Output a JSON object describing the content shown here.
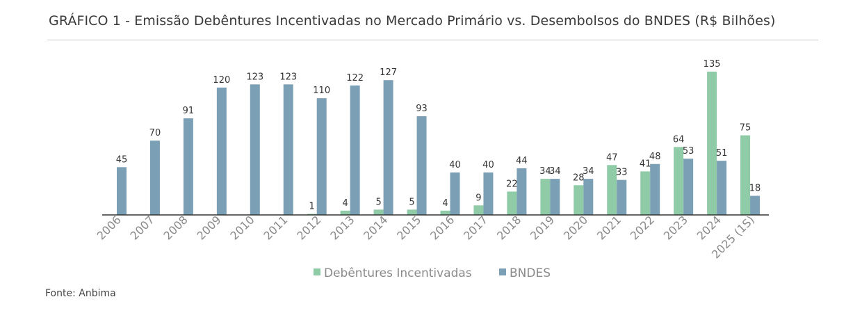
{
  "title": "GRÁFICO 1 - Emissão Debêntures Incentivadas no Mercado Primário vs. Desembolsos do BNDES (R$ Bilhões)",
  "source": "Fonte: Anbima",
  "colors": {
    "debentures": "#8ECBA6",
    "bndes": "#7B9FB5"
  },
  "chart_data": {
    "type": "bar",
    "title": "GRÁFICO 1 - Emissão Debêntures Incentivadas no Mercado Primário vs. Desembolsos do BNDES (R$ Bilhões)",
    "xlabel": "",
    "ylabel": "",
    "ylim": [
      0,
      140
    ],
    "grid": false,
    "legend": "bottom-center",
    "categories": [
      "2006",
      "2007",
      "2008",
      "2009",
      "2010",
      "2011",
      "2012",
      "2013",
      "2014",
      "2015",
      "2016",
      "2017",
      "2018",
      "2019",
      "2020",
      "2021",
      "2022",
      "2023",
      "2024",
      "2025 (1S)"
    ],
    "series": [
      {
        "name": "Debêntures Incentivadas",
        "values": [
          null,
          null,
          null,
          null,
          null,
          null,
          1,
          4,
          5,
          5,
          4,
          9,
          22,
          34,
          28,
          47,
          41,
          64,
          135,
          75
        ]
      },
      {
        "name": "BNDES",
        "values": [
          45,
          70,
          91,
          120,
          123,
          123,
          110,
          122,
          127,
          93,
          40,
          40,
          44,
          34,
          34,
          33,
          48,
          53,
          51,
          18
        ]
      }
    ]
  }
}
